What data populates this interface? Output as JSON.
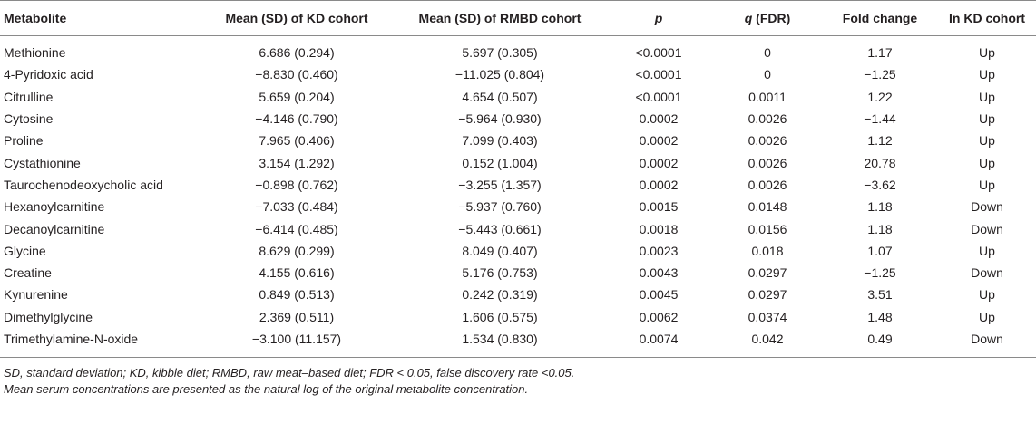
{
  "table": {
    "headers": [
      {
        "text": "Metabolite",
        "suffix": ""
      },
      {
        "text": "Mean (SD) of KD cohort",
        "suffix": ""
      },
      {
        "text": "Mean (SD) of RMBD cohort",
        "suffix": ""
      },
      {
        "text": "p",
        "suffix": ""
      },
      {
        "text": "q",
        "suffix": " (FDR)"
      },
      {
        "text": "Fold change",
        "suffix": ""
      },
      {
        "text": "In KD cohort",
        "suffix": ""
      }
    ],
    "rows": [
      [
        "Methionine",
        "6.686 (0.294)",
        "5.697 (0.305)",
        "<0.0001",
        "0",
        "1.17",
        "Up"
      ],
      [
        "4-Pyridoxic acid",
        "−8.830 (0.460)",
        "−11.025 (0.804)",
        "<0.0001",
        "0",
        "−1.25",
        "Up"
      ],
      [
        "Citrulline",
        "5.659 (0.204)",
        "4.654 (0.507)",
        "<0.0001",
        "0.0011",
        "1.22",
        "Up"
      ],
      [
        "Cytosine",
        "−4.146 (0.790)",
        "−5.964 (0.930)",
        "0.0002",
        "0.0026",
        "−1.44",
        "Up"
      ],
      [
        "Proline",
        "7.965 (0.406)",
        "7.099 (0.403)",
        "0.0002",
        "0.0026",
        "1.12",
        "Up"
      ],
      [
        "Cystathionine",
        "3.154 (1.292)",
        "0.152 (1.004)",
        "0.0002",
        "0.0026",
        "20.78",
        "Up"
      ],
      [
        "Taurochenodeoxycholic acid",
        "−0.898 (0.762)",
        "−3.255 (1.357)",
        "0.0002",
        "0.0026",
        "−3.62",
        "Up"
      ],
      [
        "Hexanoylcarnitine",
        "−7.033 (0.484)",
        "−5.937 (0.760)",
        "0.0015",
        "0.0148",
        "1.18",
        "Down"
      ],
      [
        "Decanoylcarnitine",
        "−6.414 (0.485)",
        "−5.443 (0.661)",
        "0.0018",
        "0.0156",
        "1.18",
        "Down"
      ],
      [
        "Glycine",
        "8.629 (0.299)",
        "8.049 (0.407)",
        "0.0023",
        "0.018",
        "1.07",
        "Up"
      ],
      [
        "Creatine",
        "4.155 (0.616)",
        "5.176 (0.753)",
        "0.0043",
        "0.0297",
        "−1.25",
        "Down"
      ],
      [
        "Kynurenine",
        "0.849 (0.513)",
        "0.242 (0.319)",
        "0.0045",
        "0.0297",
        "3.51",
        "Up"
      ],
      [
        "Dimethylglycine",
        "2.369 (0.511)",
        "1.606 (0.575)",
        "0.0062",
        "0.0374",
        "1.48",
        "Up"
      ],
      [
        "Trimethylamine-N-oxide",
        "−3.100 (11.157)",
        "1.534 (0.830)",
        "0.0074",
        "0.042",
        "0.49",
        "Down"
      ]
    ]
  },
  "footnotes": [
    "SD, standard deviation; KD, kibble diet; RMBD, raw meat–based diet; FDR < 0.05, false discovery rate <0.05.",
    "Mean serum concentrations are presented as the natural log of the original metabolite concentration."
  ]
}
